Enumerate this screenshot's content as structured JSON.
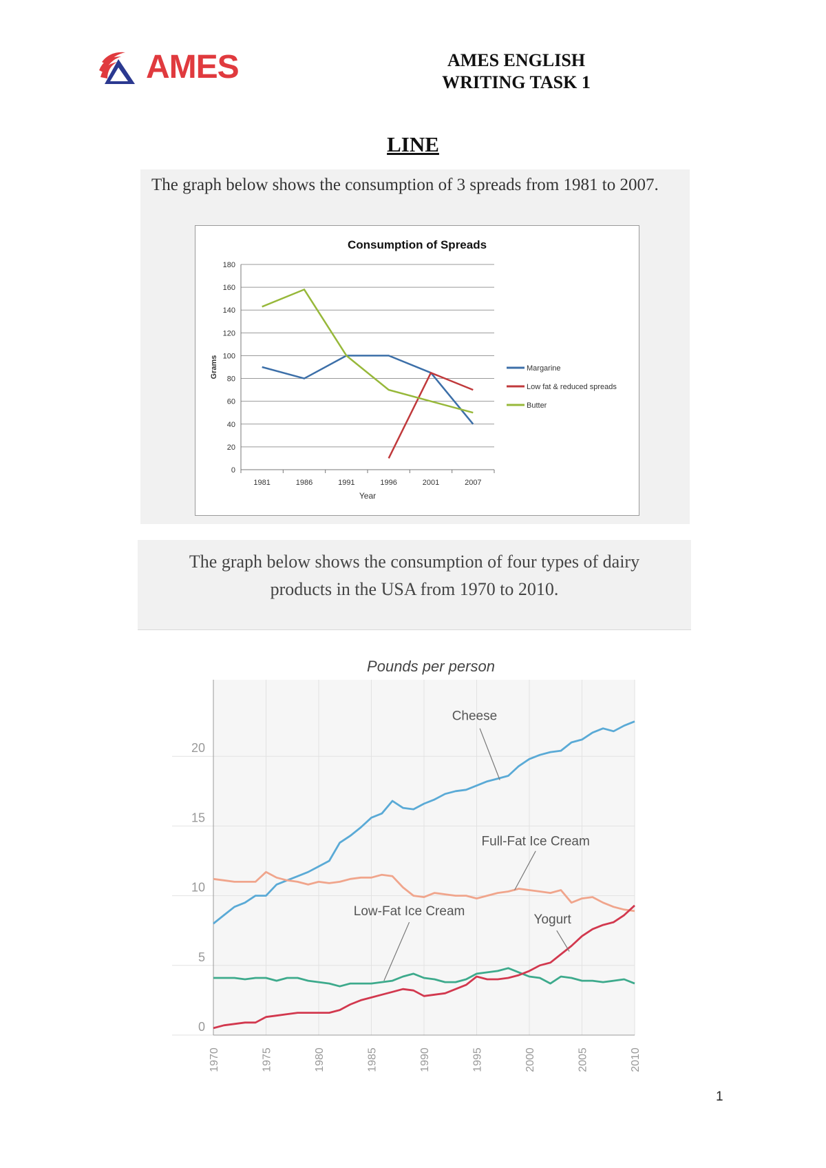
{
  "header": {
    "logo_text": "AMES",
    "right_line1": "AMES ENGLISH",
    "right_line2": "WRITING TASK 1",
    "colors": {
      "logo_red": "#e03a3e",
      "logo_blue": "#2b3990"
    }
  },
  "section_title": "LINE",
  "task1": {
    "prompt": "The graph below shows the consumption of 3 spreads from 1981 to 2007."
  },
  "task2": {
    "prompt_line1": "The graph below shows the consumption of four types of dairy",
    "prompt_line2": "products in the USA from 1970 to 2010."
  },
  "page_number": "1",
  "chart_data": [
    {
      "type": "line",
      "title": "Consumption of Spreads",
      "xlabel": "Year",
      "ylabel": "Grams",
      "categories": [
        "1981",
        "1986",
        "1991",
        "1996",
        "2001",
        "2007"
      ],
      "yticks": [
        0,
        20,
        40,
        60,
        80,
        100,
        120,
        140,
        160,
        180
      ],
      "ylim": [
        0,
        180
      ],
      "grid": true,
      "legend": "right",
      "series": [
        {
          "name": "Margarine",
          "color": "#3c6fa8",
          "values": [
            90,
            80,
            100,
            100,
            85,
            40
          ]
        },
        {
          "name": "Low fat & reduced spreads",
          "color": "#c0393b",
          "values": [
            null,
            null,
            null,
            10,
            85,
            70
          ]
        },
        {
          "name": "Butter",
          "color": "#97b83a",
          "values": [
            143,
            158,
            100,
            70,
            60,
            50
          ]
        }
      ]
    },
    {
      "type": "line",
      "title": "Pounds per person",
      "xlabel": "",
      "ylabel": "",
      "xticks": [
        "1970",
        "1975",
        "1980",
        "1985",
        "1990",
        "1995",
        "2000",
        "2005",
        "2010"
      ],
      "xlim": [
        1970,
        2010
      ],
      "yticks": [
        0,
        5,
        10,
        15,
        20
      ],
      "ylim": [
        0,
        25
      ],
      "grid": true,
      "legend": "inline labels",
      "years": [
        1970,
        1971,
        1972,
        1973,
        1974,
        1975,
        1976,
        1977,
        1978,
        1979,
        1980,
        1981,
        1982,
        1983,
        1984,
        1985,
        1986,
        1987,
        1988,
        1989,
        1990,
        1991,
        1992,
        1993,
        1994,
        1995,
        1996,
        1997,
        1998,
        1999,
        2000,
        2001,
        2002,
        2003,
        2004,
        2005,
        2006,
        2007,
        2008,
        2009,
        2010
      ],
      "series": [
        {
          "name": "Cheese",
          "color": "#5aaad6",
          "values": [
            8.0,
            8.6,
            9.2,
            9.5,
            10.0,
            10.0,
            10.8,
            11.1,
            11.4,
            11.7,
            12.1,
            12.5,
            13.8,
            14.3,
            14.9,
            15.6,
            15.9,
            16.8,
            16.3,
            16.2,
            16.6,
            16.9,
            17.3,
            17.5,
            17.6,
            17.9,
            18.2,
            18.4,
            18.6,
            19.3,
            19.8,
            20.1,
            20.3,
            20.4,
            21.0,
            21.2,
            21.7,
            22.0,
            21.8,
            22.2,
            22.5
          ]
        },
        {
          "name": "Full-Fat Ice Cream",
          "color": "#f0a58c",
          "values": [
            11.2,
            11.1,
            11.0,
            11.0,
            11.0,
            11.7,
            11.3,
            11.1,
            11.0,
            10.8,
            11.0,
            10.9,
            11.0,
            11.2,
            11.3,
            11.3,
            11.5,
            11.4,
            10.6,
            10.0,
            9.9,
            10.2,
            10.1,
            10.0,
            10.0,
            9.8,
            10.0,
            10.2,
            10.3,
            10.5,
            10.4,
            10.3,
            10.2,
            10.4,
            9.5,
            9.8,
            9.9,
            9.5,
            9.2,
            9.0,
            8.9
          ]
        },
        {
          "name": "Low-Fat Ice Cream",
          "color": "#3daa8c",
          "values": [
            4.1,
            4.1,
            4.1,
            4.0,
            4.1,
            4.1,
            3.9,
            4.1,
            4.1,
            3.9,
            3.8,
            3.7,
            3.5,
            3.7,
            3.7,
            3.7,
            3.8,
            3.9,
            4.2,
            4.4,
            4.1,
            4.0,
            3.8,
            3.8,
            4.0,
            4.4,
            4.5,
            4.6,
            4.8,
            4.5,
            4.2,
            4.1,
            3.7,
            4.2,
            4.1,
            3.9,
            3.9,
            3.8,
            3.9,
            4.0,
            3.7
          ]
        },
        {
          "name": "Yogurt",
          "color": "#d2384e",
          "values": [
            0.5,
            0.7,
            0.8,
            0.9,
            0.9,
            1.3,
            1.4,
            1.5,
            1.6,
            1.6,
            1.6,
            1.6,
            1.8,
            2.2,
            2.5,
            2.7,
            2.9,
            3.1,
            3.3,
            3.2,
            2.8,
            2.9,
            3.0,
            3.3,
            3.6,
            4.2,
            4.0,
            4.0,
            4.1,
            4.3,
            4.6,
            5.0,
            5.2,
            5.8,
            6.4,
            7.1,
            7.6,
            7.9,
            8.1,
            8.6,
            9.3
          ]
        }
      ]
    }
  ]
}
